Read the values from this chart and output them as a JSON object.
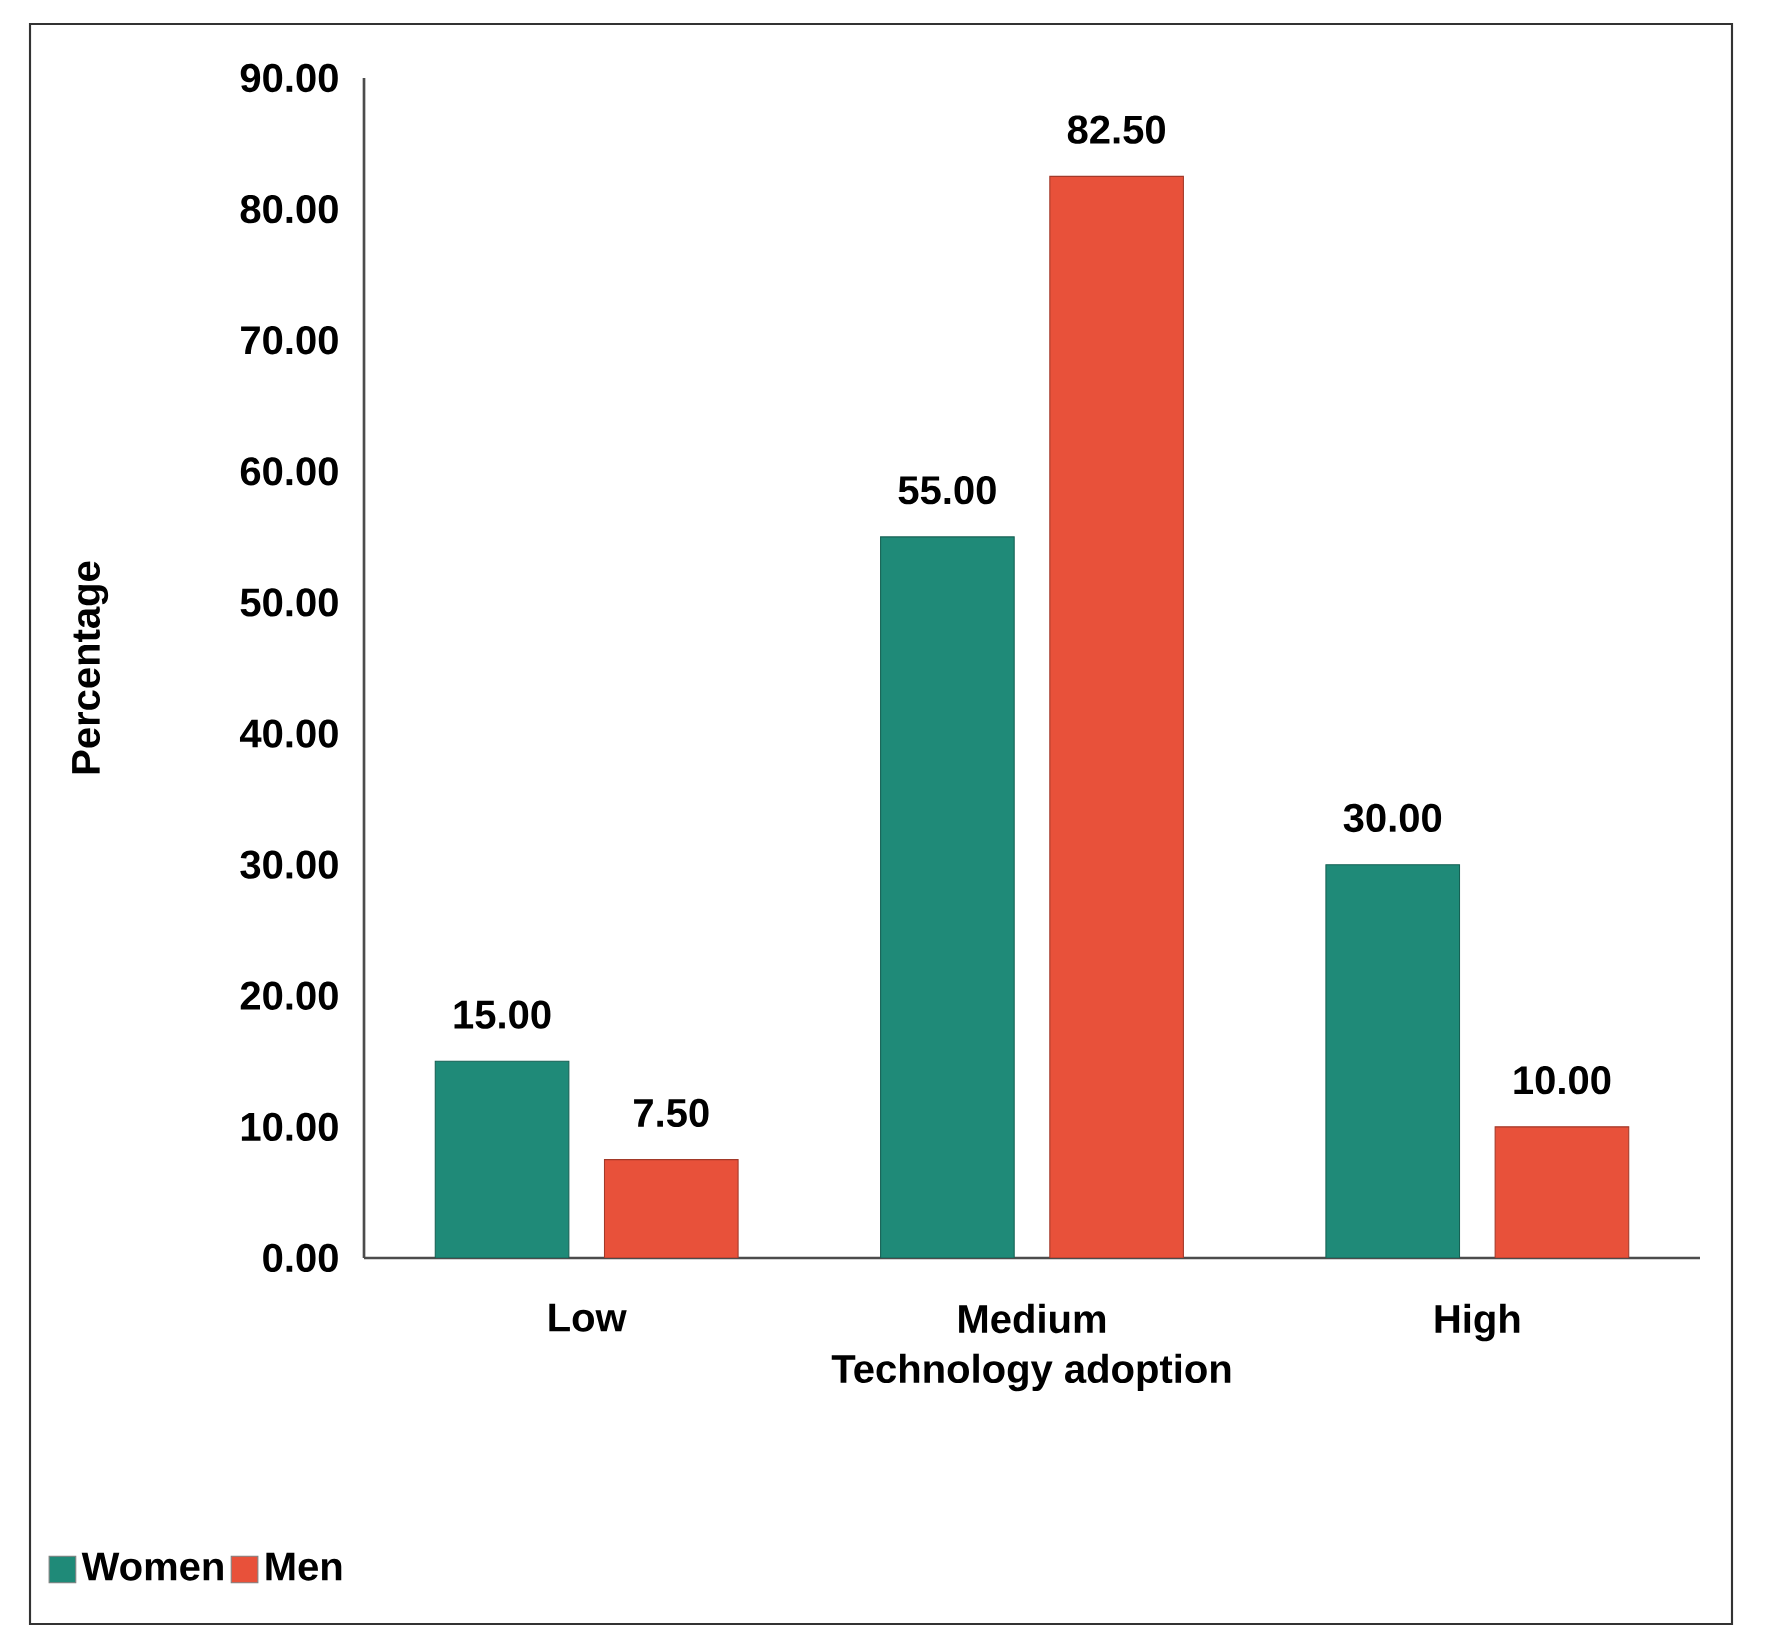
{
  "chart_data": {
    "type": "bar",
    "xlabel": "Technology adoption",
    "ylabel": "Percentage",
    "categories": [
      "Low",
      "Medium",
      "High"
    ],
    "series": [
      {
        "name": "Women",
        "color": "#1f8a78",
        "values": [
          15,
          55,
          30
        ],
        "value_labels": [
          "15.00",
          "55.00",
          "30.00"
        ]
      },
      {
        "name": "Men",
        "color": "#e8513a",
        "values": [
          7.5,
          82.5,
          10
        ],
        "value_labels": [
          "7.50",
          "82.50",
          "10.00"
        ]
      }
    ],
    "ylim": [
      0,
      90
    ],
    "yticks": [
      {
        "value": 0,
        "label": "0.00"
      },
      {
        "value": 10,
        "label": "10.00"
      },
      {
        "value": 20,
        "label": "20.00"
      },
      {
        "value": 30,
        "label": "30.00"
      },
      {
        "value": 40,
        "label": "40.00"
      },
      {
        "value": 50,
        "label": "50.00"
      },
      {
        "value": 60,
        "label": "60.00"
      },
      {
        "value": 70,
        "label": "70.00"
      },
      {
        "value": 80,
        "label": "80.00"
      },
      {
        "value": 90,
        "label": "90.00"
      }
    ],
    "legend": "bottom left",
    "grid": false
  }
}
